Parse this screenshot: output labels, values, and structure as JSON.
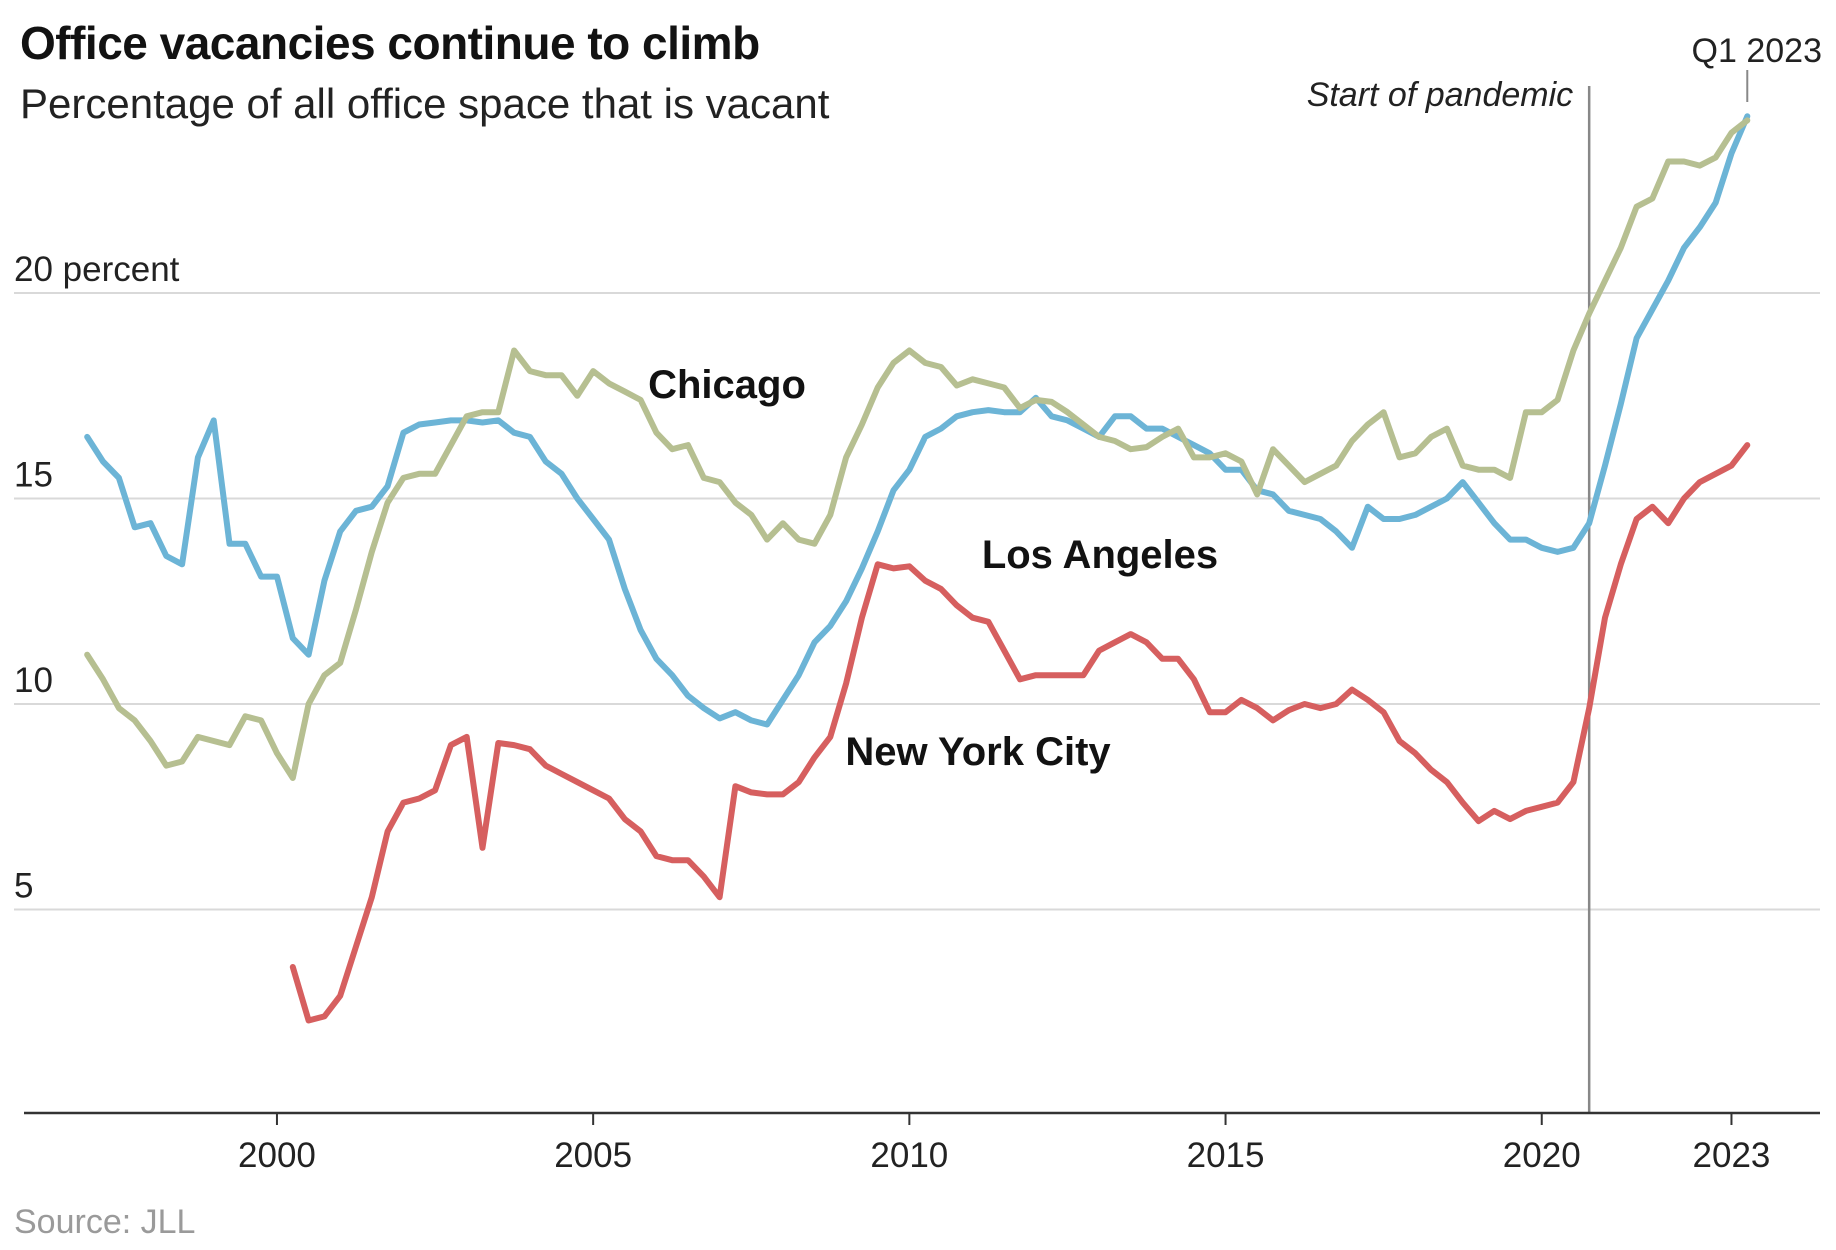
{
  "header": {
    "title": "Office vacancies continue to climb",
    "subtitle": "Percentage of all office space that is vacant"
  },
  "footer": {
    "source": "Source: JLL"
  },
  "annotations": {
    "pandemic_label": "Start of pandemic",
    "pandemic_date": 2020.75,
    "latest_label": "Q1 2023",
    "latest_date": 2023.25
  },
  "chart_data": {
    "type": "line",
    "title": "Office vacancies continue to climb",
    "subtitle": "Percentage of all office space that is vacant",
    "xlabel": "",
    "ylabel": "",
    "xlim": [
      1996.0,
      2024.4
    ],
    "ylim": [
      0,
      27
    ],
    "x_ticks": [
      {
        "value": 2000,
        "label": "2000"
      },
      {
        "value": 2005,
        "label": "2005"
      },
      {
        "value": 2010,
        "label": "2010"
      },
      {
        "value": 2015,
        "label": "2015"
      },
      {
        "value": 2020,
        "label": "2020"
      },
      {
        "value": 2023,
        "label": "2023"
      }
    ],
    "y_ticks": [
      {
        "value": 5,
        "label": "5"
      },
      {
        "value": 10,
        "label": "10"
      },
      {
        "value": 15,
        "label": "15"
      },
      {
        "value": 20,
        "label": "20 percent"
      }
    ],
    "grid": true,
    "legend": "direct labels on lines",
    "series": [
      {
        "name": "Los Angeles",
        "color": "#6cb4d6",
        "x": [
          1997.0,
          1997.25,
          1997.5,
          1997.75,
          1998.0,
          1998.25,
          1998.5,
          1998.75,
          1999.0,
          1999.25,
          1999.5,
          1999.75,
          2000.0,
          2000.25,
          2000.5,
          2000.75,
          2001.0,
          2001.25,
          2001.5,
          2001.75,
          2002.0,
          2002.25,
          2002.5,
          2002.75,
          2003.0,
          2003.25,
          2003.5,
          2003.75,
          2004.0,
          2004.25,
          2004.5,
          2004.75,
          2005.0,
          2005.25,
          2005.5,
          2005.75,
          2006.0,
          2006.25,
          2006.5,
          2006.75,
          2007.0,
          2007.25,
          2007.5,
          2007.75,
          2008.0,
          2008.25,
          2008.5,
          2008.75,
          2009.0,
          2009.25,
          2009.5,
          2009.75,
          2010.0,
          2010.25,
          2010.5,
          2010.75,
          2011.0,
          2011.25,
          2011.5,
          2011.75,
          2012.0,
          2012.25,
          2012.5,
          2012.75,
          2013.0,
          2013.25,
          2013.5,
          2013.75,
          2014.0,
          2014.25,
          2014.5,
          2014.75,
          2015.0,
          2015.25,
          2015.5,
          2015.75,
          2016.0,
          2016.25,
          2016.5,
          2016.75,
          2017.0,
          2017.25,
          2017.5,
          2017.75,
          2018.0,
          2018.25,
          2018.5,
          2018.75,
          2019.0,
          2019.25,
          2019.5,
          2019.75,
          2020.0,
          2020.25,
          2020.5,
          2020.75,
          2021.0,
          2021.25,
          2021.5,
          2021.75,
          2022.0,
          2022.25,
          2022.5,
          2022.75,
          2023.0,
          2023.25
        ],
        "values": [
          16.5,
          15.9,
          15.5,
          14.3,
          14.4,
          13.6,
          13.4,
          16.0,
          16.9,
          13.9,
          13.9,
          13.1,
          13.1,
          11.6,
          11.2,
          13.0,
          14.2,
          14.7,
          14.8,
          15.3,
          16.6,
          16.8,
          16.85,
          16.9,
          16.9,
          16.85,
          16.9,
          16.6,
          16.5,
          15.9,
          15.6,
          15.0,
          14.5,
          14.0,
          12.8,
          11.8,
          11.1,
          10.7,
          10.2,
          9.9,
          9.65,
          9.8,
          9.6,
          9.5,
          10.1,
          10.7,
          11.5,
          11.9,
          12.5,
          13.3,
          14.2,
          15.2,
          15.7,
          16.5,
          16.7,
          17.0,
          17.1,
          17.15,
          17.1,
          17.1,
          17.45,
          17.0,
          16.9,
          16.7,
          16.5,
          17.0,
          17.0,
          16.7,
          16.7,
          16.5,
          16.3,
          16.1,
          15.7,
          15.7,
          15.2,
          15.1,
          14.7,
          14.6,
          14.5,
          14.2,
          13.8,
          14.8,
          14.5,
          14.5,
          14.6,
          14.8,
          15.0,
          15.4,
          14.9,
          14.4,
          14.0,
          14.0,
          13.8,
          13.7,
          13.8,
          14.4,
          15.8,
          17.3,
          18.9,
          19.6,
          20.3,
          21.1,
          21.6,
          22.2,
          23.4,
          24.3
        ]
      },
      {
        "name": "Chicago",
        "color": "#b6bf91",
        "x": [
          1997.0,
          1997.25,
          1997.5,
          1997.75,
          1998.0,
          1998.25,
          1998.5,
          1998.75,
          1999.0,
          1999.25,
          1999.5,
          1999.75,
          2000.0,
          2000.25,
          2000.5,
          2000.75,
          2001.0,
          2001.25,
          2001.5,
          2001.75,
          2002.0,
          2002.25,
          2002.5,
          2002.75,
          2003.0,
          2003.25,
          2003.5,
          2003.75,
          2004.0,
          2004.25,
          2004.5,
          2004.75,
          2005.0,
          2005.25,
          2005.5,
          2005.75,
          2006.0,
          2006.25,
          2006.5,
          2006.75,
          2007.0,
          2007.25,
          2007.5,
          2007.75,
          2008.0,
          2008.25,
          2008.5,
          2008.75,
          2009.0,
          2009.25,
          2009.5,
          2009.75,
          2010.0,
          2010.25,
          2010.5,
          2010.75,
          2011.0,
          2011.25,
          2011.5,
          2011.75,
          2012.0,
          2012.25,
          2012.5,
          2012.75,
          2013.0,
          2013.25,
          2013.5,
          2013.75,
          2014.0,
          2014.25,
          2014.5,
          2014.75,
          2015.0,
          2015.25,
          2015.5,
          2015.75,
          2016.0,
          2016.25,
          2016.5,
          2016.75,
          2017.0,
          2017.25,
          2017.5,
          2017.75,
          2018.0,
          2018.25,
          2018.5,
          2018.75,
          2019.0,
          2019.25,
          2019.5,
          2019.75,
          2020.0,
          2020.25,
          2020.5,
          2020.75,
          2021.0,
          2021.25,
          2021.5,
          2021.75,
          2022.0,
          2022.25,
          2022.5,
          2022.75,
          2023.0,
          2023.25
        ],
        "values": [
          11.2,
          10.6,
          9.9,
          9.6,
          9.1,
          8.5,
          8.6,
          9.2,
          9.1,
          9.0,
          9.7,
          9.6,
          8.8,
          8.2,
          10.0,
          10.7,
          11.0,
          12.3,
          13.7,
          14.9,
          15.5,
          15.6,
          15.6,
          16.3,
          17.0,
          17.1,
          17.1,
          18.6,
          18.1,
          18.0,
          18.0,
          17.5,
          18.1,
          17.8,
          17.6,
          17.4,
          16.6,
          16.2,
          16.3,
          15.5,
          15.4,
          14.9,
          14.6,
          14.0,
          14.4,
          14.0,
          13.9,
          14.6,
          16.0,
          16.8,
          17.7,
          18.3,
          18.6,
          18.3,
          18.2,
          17.75,
          17.9,
          17.8,
          17.7,
          17.2,
          17.4,
          17.35,
          17.1,
          16.8,
          16.5,
          16.4,
          16.2,
          16.25,
          16.5,
          16.7,
          16.0,
          16.0,
          16.1,
          15.9,
          15.1,
          16.2,
          15.8,
          15.4,
          15.6,
          15.8,
          16.4,
          16.8,
          17.1,
          16.0,
          16.1,
          16.5,
          16.7,
          15.8,
          15.7,
          15.7,
          15.5,
          17.1,
          17.1,
          17.4,
          18.6,
          19.5,
          20.3,
          21.1,
          22.1,
          22.3,
          23.2,
          23.2,
          23.1,
          23.3,
          23.9,
          24.2
        ]
      },
      {
        "name": "New York City",
        "color": "#d65f5f",
        "x": [
          2000.25,
          2000.5,
          2000.75,
          2001.0,
          2001.25,
          2001.5,
          2001.75,
          2002.0,
          2002.25,
          2002.5,
          2002.75,
          2003.0,
          2003.25,
          2003.5,
          2003.75,
          2004.0,
          2004.25,
          2004.5,
          2004.75,
          2005.0,
          2005.25,
          2005.5,
          2005.75,
          2006.0,
          2006.25,
          2006.5,
          2006.75,
          2007.0,
          2007.25,
          2007.5,
          2007.75,
          2008.0,
          2008.25,
          2008.5,
          2008.75,
          2009.0,
          2009.25,
          2009.5,
          2009.75,
          2010.0,
          2010.25,
          2010.5,
          2010.75,
          2011.0,
          2011.25,
          2011.5,
          2011.75,
          2012.0,
          2012.25,
          2012.5,
          2012.75,
          2013.0,
          2013.25,
          2013.5,
          2013.75,
          2014.0,
          2014.25,
          2014.5,
          2014.75,
          2015.0,
          2015.25,
          2015.5,
          2015.75,
          2016.0,
          2016.25,
          2016.5,
          2016.75,
          2017.0,
          2017.25,
          2017.5,
          2017.75,
          2018.0,
          2018.25,
          2018.5,
          2018.75,
          2019.0,
          2019.25,
          2019.5,
          2019.75,
          2020.0,
          2020.25,
          2020.5,
          2020.75,
          2021.0,
          2021.25,
          2021.5,
          2021.75,
          2022.0,
          2022.25,
          2022.5,
          2022.75,
          2023.0,
          2023.25
        ],
        "values": [
          3.6,
          2.3,
          2.4,
          2.9,
          4.1,
          5.3,
          6.9,
          7.6,
          7.7,
          7.9,
          9.0,
          9.2,
          6.5,
          9.05,
          9.0,
          8.9,
          8.5,
          8.3,
          8.1,
          7.9,
          7.7,
          7.2,
          6.9,
          6.3,
          6.2,
          6.2,
          5.8,
          5.3,
          8.0,
          7.85,
          7.8,
          7.8,
          8.1,
          8.7,
          9.2,
          10.5,
          12.1,
          13.4,
          13.3,
          13.35,
          13.0,
          12.8,
          12.4,
          12.1,
          12.0,
          11.3,
          10.6,
          10.7,
          10.7,
          10.7,
          10.7,
          11.3,
          11.5,
          11.7,
          11.5,
          11.1,
          11.1,
          10.6,
          9.8,
          9.8,
          10.1,
          9.9,
          9.6,
          9.85,
          10.0,
          9.9,
          10.0,
          10.35,
          10.1,
          9.8,
          9.1,
          8.8,
          8.4,
          8.1,
          7.6,
          7.15,
          7.4,
          7.2,
          7.4,
          7.5,
          7.6,
          8.1,
          9.9,
          12.1,
          13.4,
          14.5,
          14.8,
          14.4,
          15.0,
          15.4,
          15.6,
          15.8,
          16.3
        ]
      }
    ]
  }
}
